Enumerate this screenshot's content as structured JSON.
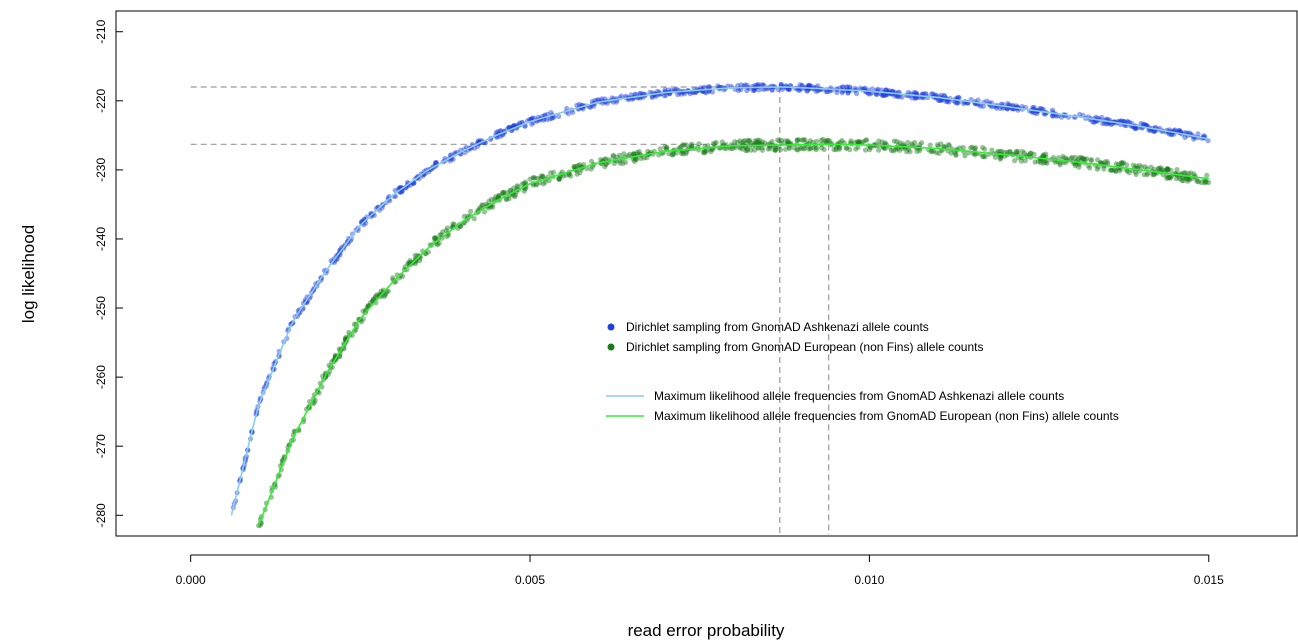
{
  "chart_data": {
    "type": "scatter",
    "title": "",
    "xlabel": "read error probability",
    "ylabel": "log likelihood",
    "xlim": [
      -0.0011,
      0.0163
    ],
    "ylim": [
      -283,
      -207
    ],
    "x_ticks": [
      0.0,
      0.005,
      0.01,
      0.015
    ],
    "x_tick_labels": [
      "0.000",
      "0.005",
      "0.010",
      "0.015"
    ],
    "y_ticks": [
      -280,
      -270,
      -260,
      -250,
      -240,
      -230,
      -220,
      -210
    ],
    "y_tick_labels": [
      "-280",
      "-270",
      "-260",
      "-250",
      "-240",
      "-230",
      "-220",
      "-210"
    ],
    "grid": false,
    "legend_position": "center-right",
    "reference_lines": {
      "horizontal": [
        -218.0,
        -226.3
      ],
      "vertical": [
        0.00868,
        0.0094
      ]
    },
    "series": [
      {
        "name": "Dirichlet sampling from GnomAD Ashkenazi allele counts",
        "kind": "points",
        "color": "#1f3fe0",
        "x": [
          0.0006,
          0.001,
          0.0015,
          0.002,
          0.0025,
          0.003,
          0.0035,
          0.004,
          0.0045,
          0.005,
          0.006,
          0.007,
          0.008,
          0.0087,
          0.009,
          0.01,
          0.011,
          0.012,
          0.013,
          0.014,
          0.015
        ],
        "y": [
          -280.0,
          -264.0,
          -252.0,
          -244.5,
          -238.0,
          -233.5,
          -230.0,
          -227.3,
          -225.0,
          -223.0,
          -220.2,
          -218.8,
          -218.1,
          -218.0,
          -218.1,
          -218.6,
          -219.5,
          -220.8,
          -222.2,
          -223.7,
          -225.5
        ]
      },
      {
        "name": "Dirichlet sampling from GnomAD European (non Fins) allele counts",
        "kind": "points",
        "color": "#1a7a1a",
        "x": [
          0.001,
          0.0015,
          0.002,
          0.0025,
          0.003,
          0.0035,
          0.004,
          0.0045,
          0.005,
          0.006,
          0.007,
          0.008,
          0.0094,
          0.01,
          0.011,
          0.012,
          0.013,
          0.014,
          0.015
        ],
        "y": [
          -281.5,
          -269.0,
          -259.5,
          -251.5,
          -246.0,
          -241.3,
          -237.5,
          -234.5,
          -232.0,
          -229.0,
          -227.3,
          -226.5,
          -226.3,
          -226.4,
          -226.9,
          -227.8,
          -228.8,
          -230.0,
          -231.3
        ]
      },
      {
        "name": "Maximum likelihood allele frequencies from GnomAD Ashkenazi allele counts",
        "kind": "line",
        "color": "#87ceeb"
      },
      {
        "name": "Maximum likelihood allele frequencies from GnomAD European (non Fins) allele counts",
        "kind": "line",
        "color": "#33ee33"
      }
    ]
  }
}
